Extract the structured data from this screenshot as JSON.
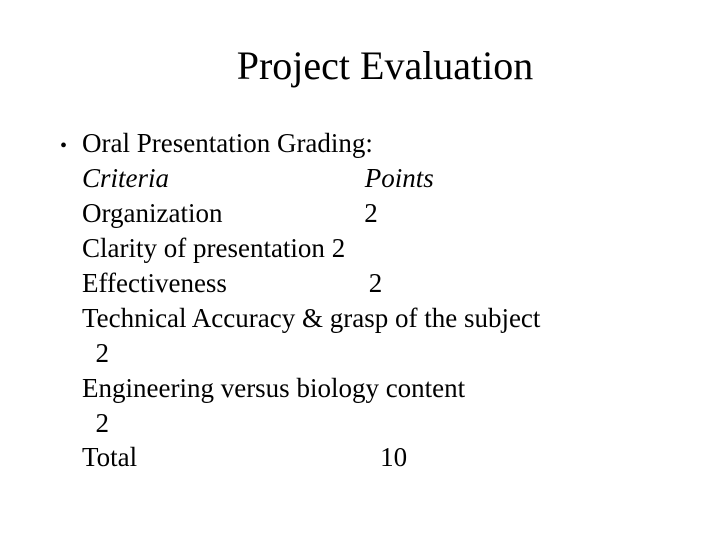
{
  "title": "Project Evaluation",
  "heading": "Oral Presentation Grading:",
  "header_criteria": "Criteria",
  "header_points": "Points",
  "row_org_label": "Organization",
  "row_org_value": "2",
  "row_clarity_label": "Clarity of presentation",
  "row_clarity_value": "2",
  "row_effect_label": "Effectiveness",
  "row_effect_value": "2",
  "row_tech_label": "Technical Accuracy & grasp of the subject",
  "row_tech_value": "2",
  "row_eng_label": "Engineering versus biology content",
  "row_eng_value": "2",
  "row_total_label": "Total",
  "row_total_value": "10",
  "colors": {
    "background": "#ffffff",
    "text": "#000000"
  },
  "typography": {
    "title_fontsize": 40,
    "body_fontsize": 27,
    "font_family": "Times New Roman"
  }
}
